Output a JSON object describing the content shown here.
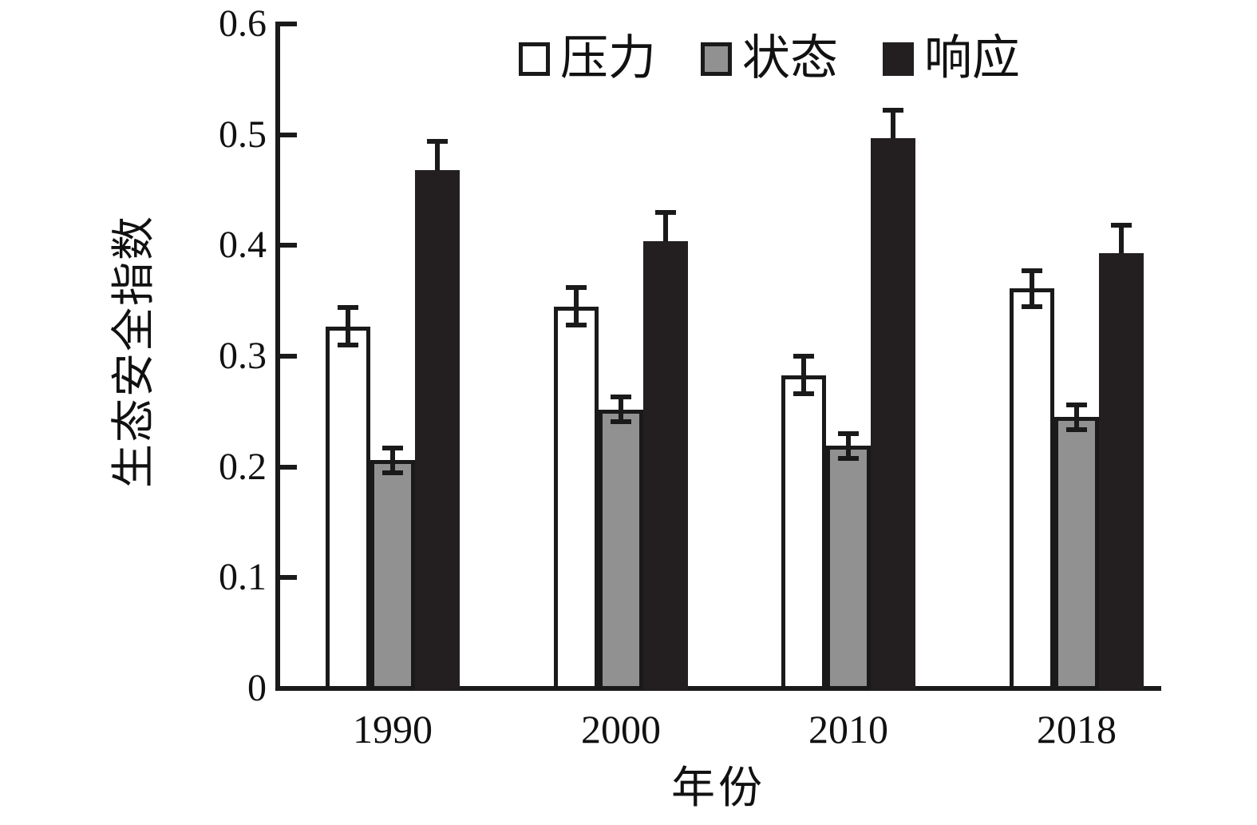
{
  "chart_data": {
    "type": "bar",
    "title": "",
    "xlabel": "年份",
    "ylabel": "生态安全指数",
    "categories": [
      "1990",
      "2000",
      "2010",
      "2018"
    ],
    "series": [
      {
        "key": "pressure",
        "name": "压力",
        "color": "#ffffff",
        "border_color": "#1a1a1a",
        "values": [
          0.327,
          0.345,
          0.283,
          0.361
        ],
        "errors": [
          0.017,
          0.017,
          0.017,
          0.016
        ],
        "error_style": "both"
      },
      {
        "key": "state",
        "name": "状态",
        "color": "#919191",
        "border_color": "#1a1a1a",
        "values": [
          0.206,
          0.252,
          0.219,
          0.245
        ],
        "errors": [
          0.011,
          0.011,
          0.011,
          0.011
        ],
        "error_style": "both"
      },
      {
        "key": "response",
        "name": "响应",
        "color": "#231f20",
        "border_color": "#231f20",
        "values": [
          0.468,
          0.404,
          0.497,
          0.393
        ],
        "errors": [
          0.026,
          0.026,
          0.025,
          0.025
        ],
        "error_style": "upper"
      }
    ],
    "ylim": [
      0,
      0.6
    ],
    "yticks": [
      0,
      0.1,
      0.2,
      0.3,
      0.4,
      0.5,
      0.6
    ],
    "ytick_labels": [
      "0",
      "0.1",
      "0.2",
      "0.3",
      "0.4",
      "0.5",
      "0.6"
    ],
    "grid": false,
    "error_bars": true,
    "legend_position": "top-center-inside",
    "axis_color": "#1a1a1a",
    "background_color": "#ffffff"
  }
}
